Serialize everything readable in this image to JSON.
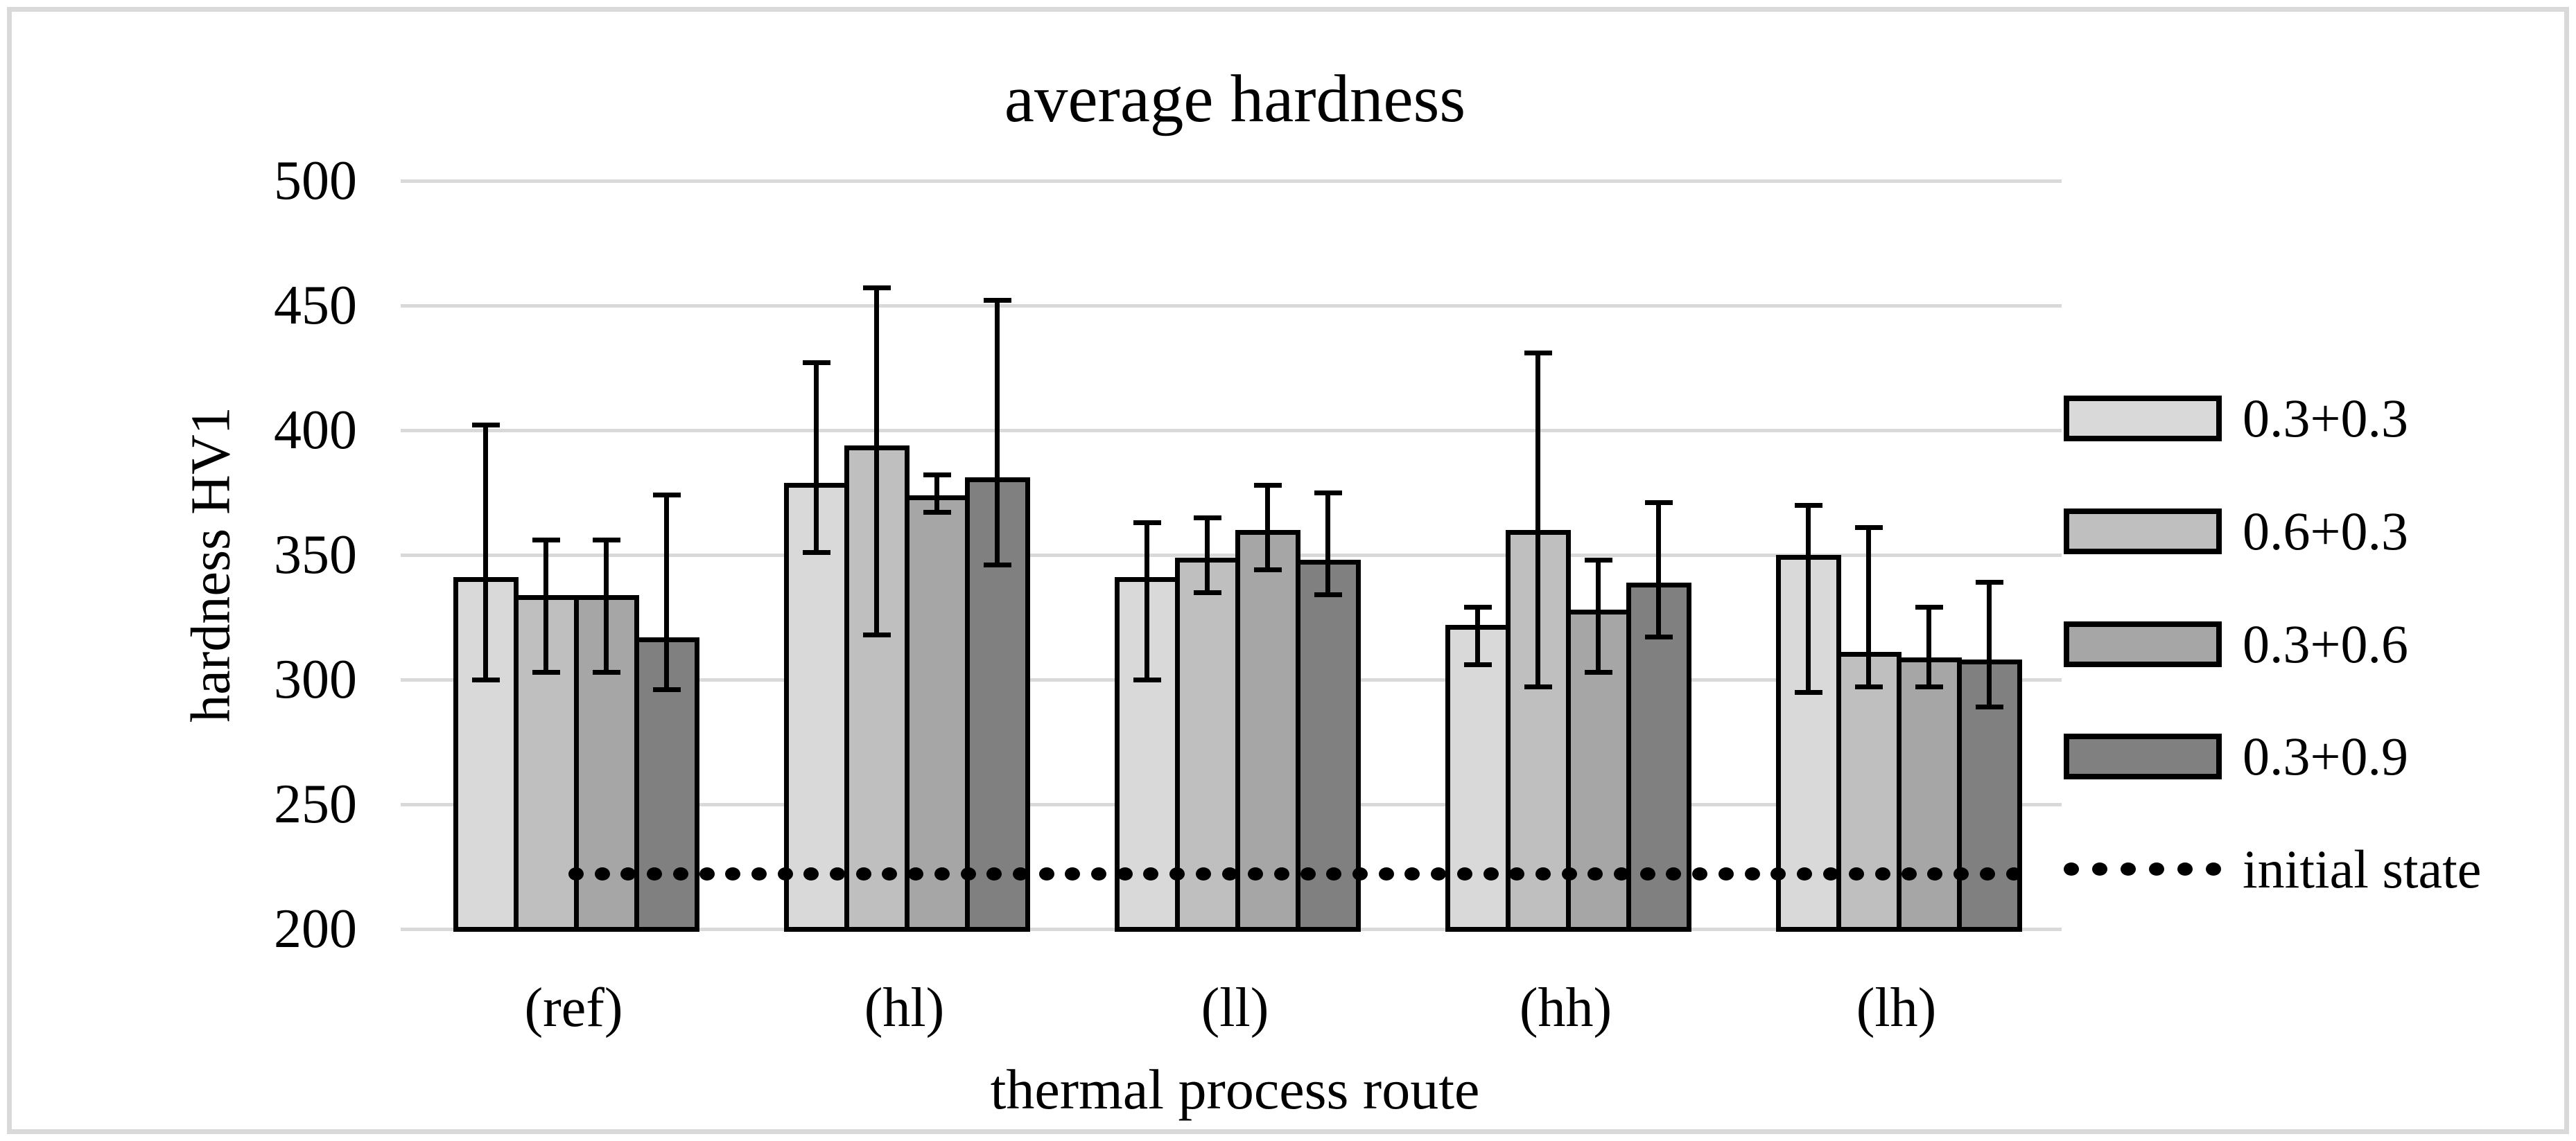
{
  "figure": {
    "border_color": "#d9d9d9",
    "background_color": "#ffffff"
  },
  "chart_data": {
    "type": "bar",
    "title": "average hardness",
    "xlabel": "thermal process route",
    "ylabel": "hardness HV1",
    "ylim": [
      200,
      500
    ],
    "yticks": [
      200,
      250,
      300,
      350,
      400,
      450,
      500
    ],
    "grid": true,
    "gridline_color": "#d9d9d9",
    "bar_border_color": "#000000",
    "legend_position": "right",
    "categories": [
      "(ref)",
      "(hl)",
      "(ll)",
      "(hh)",
      "(lh)"
    ],
    "series": [
      {
        "name": "0.3+0.3",
        "color": "#d9d9d9",
        "values": [
          341,
          379,
          341,
          322,
          350
        ],
        "error_low": [
          300,
          351,
          300,
          306,
          295
        ],
        "error_high": [
          402,
          427,
          363,
          329,
          370
        ]
      },
      {
        "name": "0.6+0.3",
        "color": "#bfbfbf",
        "values": [
          334,
          394,
          349,
          360,
          311
        ],
        "error_low": [
          303,
          318,
          335,
          297,
          297
        ],
        "error_high": [
          356,
          457,
          365,
          431,
          361
        ]
      },
      {
        "name": "0.3+0.6",
        "color": "#a6a6a6",
        "values": [
          334,
          374,
          360,
          328,
          309
        ],
        "error_low": [
          303,
          367,
          344,
          303,
          297
        ],
        "error_high": [
          356,
          382,
          378,
          348,
          329
        ]
      },
      {
        "name": "0.3+0.9",
        "color": "#808080",
        "values": [
          317,
          381,
          348,
          339,
          308
        ],
        "error_low": [
          296,
          346,
          334,
          317,
          289
        ],
        "error_high": [
          374,
          452,
          375,
          371,
          339
        ]
      }
    ],
    "reference_line": {
      "label": "initial state",
      "value": 222,
      "style": "dotted",
      "color": "#000000"
    }
  }
}
